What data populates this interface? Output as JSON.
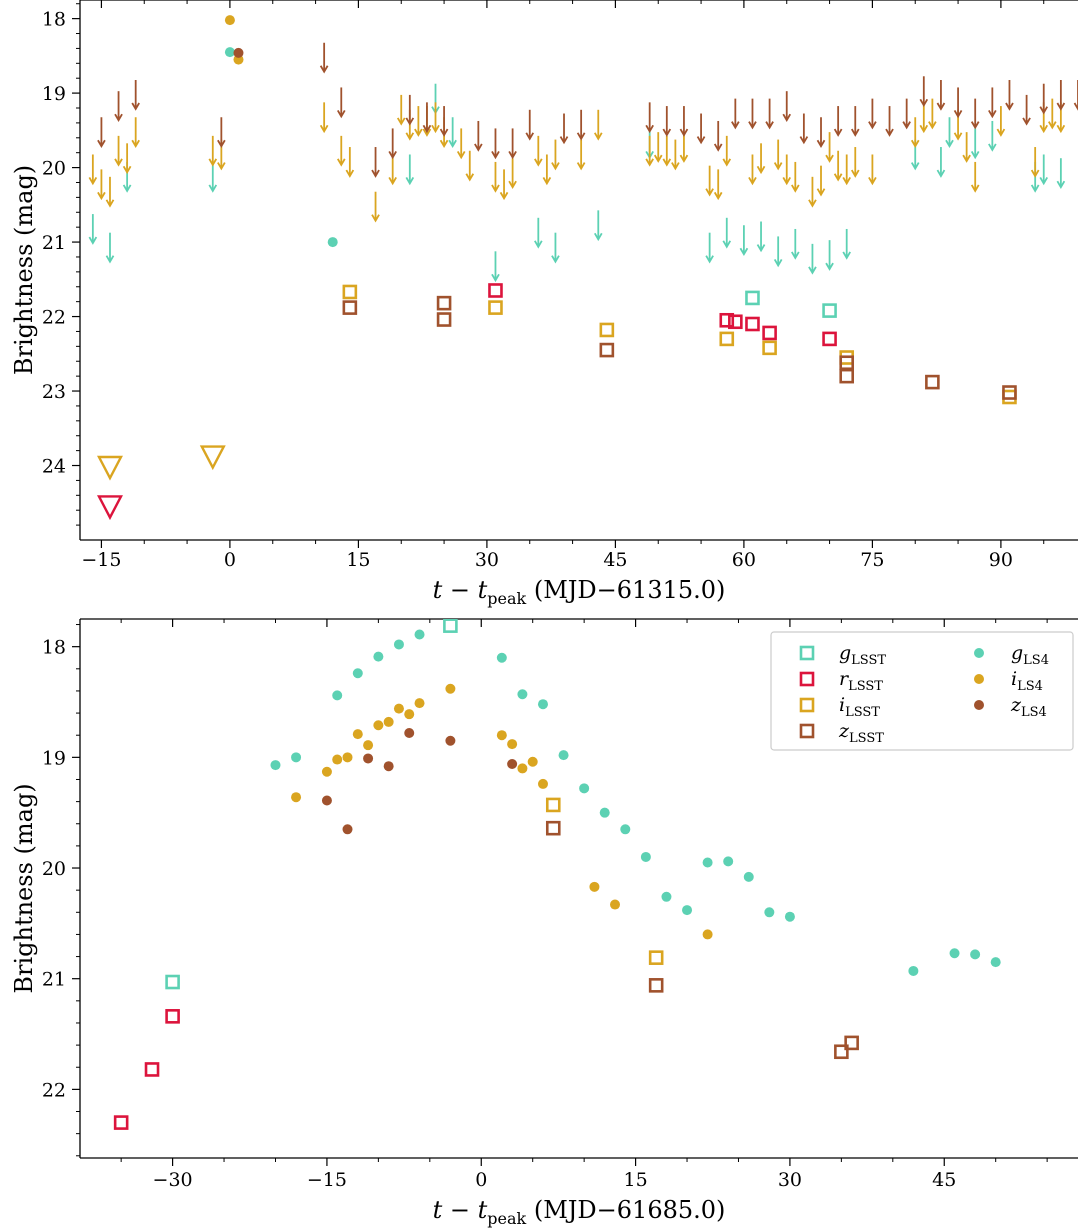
{
  "chart_data": [
    {
      "type": "scatter",
      "xlabel": "t − t_peak (MJD−61315.0)",
      "ylabel": "Brightness (mag)",
      "xlim": [
        -17.5,
        99
      ],
      "ylim": [
        25.0,
        17.75
      ],
      "y_inverted": true,
      "xticks": [
        -15,
        0,
        15,
        30,
        45,
        60,
        75,
        90
      ],
      "xtick_labels": [
        "−15",
        "0",
        "15",
        "30",
        "45",
        "60",
        "75",
        "90"
      ],
      "yticks": [
        18,
        19,
        20,
        21,
        22,
        23,
        24
      ],
      "series": [
        {
          "name": "g_LSST",
          "color": "#5cd1b3",
          "marker": "open-square",
          "points": [
            [
              61,
              21.75
            ],
            [
              70,
              21.92
            ]
          ]
        },
        {
          "name": "r_LSST",
          "color": "#dc143c",
          "marker": "open-square",
          "points": [
            [
              31,
              21.65
            ],
            [
              58,
              22.05
            ],
            [
              59,
              22.07
            ],
            [
              61,
              22.1
            ],
            [
              63,
              22.22
            ],
            [
              70,
              22.3
            ]
          ]
        },
        {
          "name": "i_LSST",
          "color": "#daa520",
          "marker": "open-square",
          "points": [
            [
              14,
              21.67
            ],
            [
              31,
              21.88
            ],
            [
              44,
              22.18
            ],
            [
              58,
              22.3
            ],
            [
              63,
              22.42
            ],
            [
              72,
              22.55
            ],
            [
              91,
              23.08
            ]
          ]
        },
        {
          "name": "z_LSST",
          "color": "#a0522d",
          "marker": "open-square",
          "points": [
            [
              14,
              21.88
            ],
            [
              25,
              21.82
            ],
            [
              25,
              22.04
            ],
            [
              44,
              22.45
            ],
            [
              72,
              22.62
            ],
            [
              72,
              22.8
            ],
            [
              82,
              22.88
            ],
            [
              91,
              23.02
            ]
          ]
        },
        {
          "name": "g_LS4",
          "color": "#5cd1b3",
          "marker": "dot",
          "points": [
            [
              0,
              18.45
            ],
            [
              12,
              21.0
            ]
          ]
        },
        {
          "name": "i_LS4",
          "color": "#daa520",
          "marker": "dot",
          "points": [
            [
              0,
              18.02
            ],
            [
              1,
              18.55
            ]
          ]
        },
        {
          "name": "z_LS4",
          "color": "#a0522d",
          "marker": "dot",
          "points": [
            [
              1,
              18.46
            ]
          ]
        },
        {
          "name": "",
          "color": "#daa520",
          "marker": "open-triangle-down",
          "points": [
            [
              -14,
              24.02
            ],
            [
              -2,
              23.88
            ]
          ]
        },
        {
          "name": "",
          "color": "#dc143c",
          "marker": "open-triangle-down",
          "points": [
            [
              -14,
              24.55
            ]
          ]
        }
      ],
      "upper_limits": [
        {
          "color": "#5cd1b3",
          "x": [
            -16,
            -14,
            -12,
            -2,
            21,
            24,
            26,
            31,
            36,
            38,
            43,
            49,
            56,
            58,
            60,
            62,
            64,
            66,
            68,
            70,
            72,
            80,
            83,
            84,
            87,
            89,
            94,
            95,
            97
          ],
          "y": [
            21.0,
            21.25,
            20.3,
            20.3,
            20.2,
            19.25,
            19.7,
            21.5,
            21.05,
            21.25,
            20.95,
            19.85,
            21.25,
            21.05,
            21.15,
            21.1,
            21.3,
            21.2,
            21.4,
            21.35,
            21.2,
            20.0,
            20.1,
            19.7,
            19.85,
            19.75,
            20.3,
            20.2,
            20.25
          ]
        },
        {
          "color": "#daa520",
          "x": [
            -16,
            -15,
            -14,
            -13,
            -12,
            -11,
            -2,
            -1,
            11,
            13,
            14,
            17,
            19,
            20,
            21,
            22,
            23,
            24,
            25,
            27,
            28,
            31,
            32,
            33,
            36,
            37,
            38,
            41,
            43,
            49,
            50,
            51,
            52,
            53,
            56,
            57,
            58,
            61,
            62,
            64,
            65,
            66,
            68,
            69,
            70,
            71,
            72,
            73,
            75,
            80,
            81,
            82,
            85,
            86,
            87,
            90,
            94,
            95,
            96,
            97
          ],
          "y": [
            20.2,
            20.4,
            20.5,
            19.95,
            20.05,
            19.7,
            19.95,
            20.0,
            19.5,
            19.95,
            20.1,
            20.7,
            20.2,
            19.4,
            19.6,
            19.55,
            19.55,
            19.5,
            19.7,
            19.85,
            20.15,
            20.3,
            20.4,
            20.25,
            19.95,
            20.2,
            20.0,
            20.0,
            19.6,
            19.95,
            19.9,
            19.95,
            20.0,
            19.9,
            20.35,
            20.4,
            19.95,
            20.2,
            20.05,
            20.0,
            20.2,
            20.3,
            20.5,
            20.35,
            19.9,
            20.15,
            20.2,
            20.1,
            20.2,
            19.7,
            19.5,
            19.45,
            19.6,
            19.9,
            20.3,
            19.55,
            20.1,
            19.5,
            19.45,
            19.5
          ]
        },
        {
          "color": "#a0522d",
          "x": [
            -15,
            -13,
            -11,
            -1,
            11,
            13,
            17,
            19,
            21,
            23,
            25,
            29,
            31,
            33,
            35,
            39,
            41,
            49,
            51,
            53,
            55,
            57,
            59,
            61,
            63,
            65,
            67,
            69,
            71,
            73,
            75,
            77,
            79,
            81,
            83,
            85,
            87,
            89,
            91,
            93,
            95,
            97,
            99
          ],
          "y": [
            19.7,
            19.35,
            19.2,
            19.7,
            18.7,
            19.3,
            20.1,
            19.85,
            19.4,
            19.5,
            19.55,
            19.75,
            19.85,
            19.85,
            19.6,
            19.65,
            19.6,
            19.5,
            19.55,
            19.55,
            19.65,
            19.75,
            19.45,
            19.45,
            19.45,
            19.35,
            19.65,
            19.7,
            19.55,
            19.55,
            19.45,
            19.55,
            19.45,
            19.15,
            19.2,
            19.3,
            19.45,
            19.3,
            19.2,
            19.4,
            19.25,
            19.2,
            19.2
          ]
        }
      ]
    },
    {
      "type": "scatter",
      "xlabel": "t − t_peak (MJD−61685.0)",
      "ylabel": "Brightness (mag)",
      "xlim": [
        -39,
        58
      ],
      "ylim": [
        22.62,
        17.75
      ],
      "y_inverted": true,
      "xticks": [
        -30,
        -15,
        0,
        15,
        30,
        45
      ],
      "xtick_labels": [
        "−30",
        "−15",
        "0",
        "15",
        "30",
        "45"
      ],
      "yticks": [
        18,
        19,
        20,
        21,
        22
      ],
      "series": [
        {
          "name": "g_LSST",
          "color": "#5cd1b3",
          "marker": "open-square",
          "points": [
            [
              -30,
              21.03
            ],
            [
              -3,
              17.81
            ]
          ]
        },
        {
          "name": "r_LSST",
          "color": "#dc143c",
          "marker": "open-square",
          "points": [
            [
              -35,
              22.3
            ],
            [
              -32,
              21.82
            ],
            [
              -30,
              21.34
            ]
          ]
        },
        {
          "name": "i_LSST",
          "color": "#daa520",
          "marker": "open-square",
          "points": [
            [
              7,
              19.43
            ],
            [
              17,
              20.81
            ]
          ]
        },
        {
          "name": "z_LSST",
          "color": "#a0522d",
          "marker": "open-square",
          "points": [
            [
              7,
              19.64
            ],
            [
              17,
              21.06
            ],
            [
              35,
              21.66
            ],
            [
              36,
              21.58
            ]
          ]
        },
        {
          "name": "g_LS4",
          "color": "#5cd1b3",
          "marker": "dot",
          "points": [
            [
              -20,
              19.07
            ],
            [
              -18,
              19.0
            ],
            [
              -14,
              18.44
            ],
            [
              -12,
              18.24
            ],
            [
              -10,
              18.09
            ],
            [
              -8,
              17.98
            ],
            [
              -6,
              17.89
            ],
            [
              2,
              18.1
            ],
            [
              4,
              18.43
            ],
            [
              6,
              18.52
            ],
            [
              8,
              18.98
            ],
            [
              10,
              19.28
            ],
            [
              12,
              19.5
            ],
            [
              14,
              19.65
            ],
            [
              16,
              19.9
            ],
            [
              18,
              20.26
            ],
            [
              20,
              20.38
            ],
            [
              22,
              19.95
            ],
            [
              24,
              19.94
            ],
            [
              26,
              20.08
            ],
            [
              28,
              20.4
            ],
            [
              30,
              20.44
            ],
            [
              42,
              20.93
            ],
            [
              46,
              20.77
            ],
            [
              48,
              20.78
            ],
            [
              50,
              20.85
            ]
          ]
        },
        {
          "name": "i_LS4",
          "color": "#daa520",
          "marker": "dot",
          "points": [
            [
              -18,
              19.36
            ],
            [
              -15,
              19.13
            ],
            [
              -14,
              19.02
            ],
            [
              -13,
              19.0
            ],
            [
              -12,
              18.79
            ],
            [
              -11,
              18.89
            ],
            [
              -10,
              18.71
            ],
            [
              -9,
              18.68
            ],
            [
              -8,
              18.56
            ],
            [
              -7,
              18.61
            ],
            [
              -6,
              18.51
            ],
            [
              -3,
              18.38
            ],
            [
              2,
              18.8
            ],
            [
              3,
              18.88
            ],
            [
              4,
              19.1
            ],
            [
              5,
              19.04
            ],
            [
              6,
              19.24
            ],
            [
              11,
              20.17
            ],
            [
              13,
              20.33
            ],
            [
              22,
              20.6
            ]
          ]
        },
        {
          "name": "z_LS4",
          "color": "#a0522d",
          "marker": "dot",
          "points": [
            [
              -15,
              19.39
            ],
            [
              -13,
              19.65
            ],
            [
              -11,
              19.01
            ],
            [
              -9,
              19.08
            ],
            [
              -7,
              18.78
            ],
            [
              -3,
              18.85
            ],
            [
              3,
              19.06
            ]
          ]
        }
      ],
      "legend": {
        "placement": "top-right",
        "columns": 2,
        "entries": [
          {
            "label": "g",
            "sub": "LSST",
            "color": "#5cd1b3",
            "marker": "open-square"
          },
          {
            "label": "r",
            "sub": "LSST",
            "color": "#dc143c",
            "marker": "open-square"
          },
          {
            "label": "i",
            "sub": "LSST",
            "color": "#daa520",
            "marker": "open-square"
          },
          {
            "label": "z",
            "sub": "LSST",
            "color": "#a0522d",
            "marker": "open-square"
          },
          {
            "label": "g",
            "sub": "LS4",
            "color": "#5cd1b3",
            "marker": "dot"
          },
          {
            "label": "i",
            "sub": "LS4",
            "color": "#daa520",
            "marker": "dot"
          },
          {
            "label": "z",
            "sub": "LS4",
            "color": "#a0522d",
            "marker": "dot"
          }
        ]
      }
    }
  ]
}
